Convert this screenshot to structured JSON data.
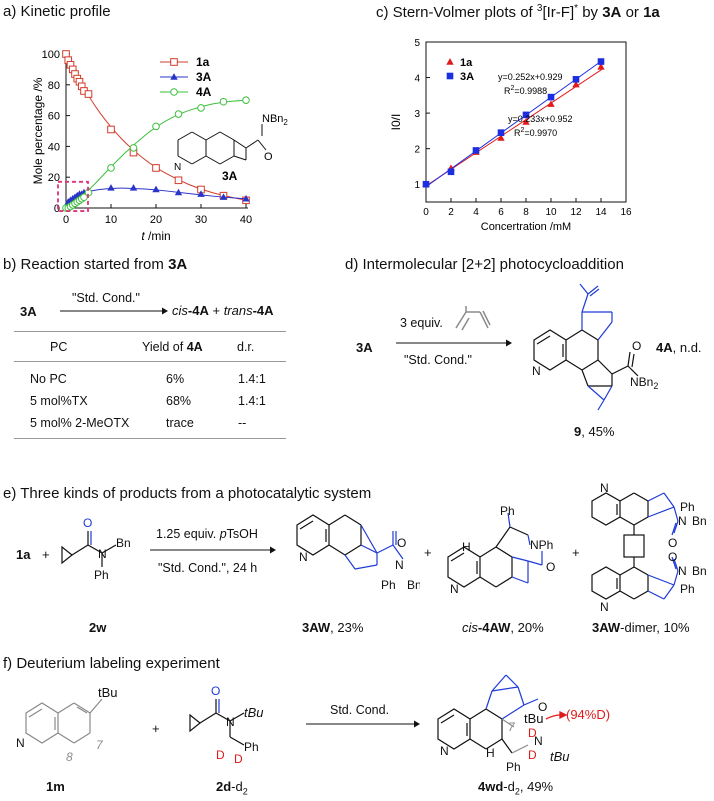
{
  "panels": {
    "a_title": "a) Kinetic profile",
    "b_title": "b) Reaction started from ",
    "b_title_bold": "3A",
    "c_title_pre": "c) Stern-Volmer plots of ",
    "c_title_sup": "3",
    "c_title_mid": "[Ir-F]",
    "c_title_star": "*",
    "c_title_by": " by ",
    "c_title_3a": "3A",
    "c_title_or": " or ",
    "c_title_1a": "1a",
    "d_title": "d) Intermolecular [2+2] photocycloaddition",
    "e_title": "e) Three kinds of products from a photocatalytic system",
    "f_title": "f) Deuterium labeling experiment"
  },
  "chart_data": [
    {
      "type": "line",
      "title": "Kinetic profile",
      "xlabel_italic": "t",
      "xlabel": " /min",
      "ylabel": "Mole percentage /%",
      "xlim": [
        0,
        40
      ],
      "ylim": [
        0,
        100
      ],
      "xticks": [
        "0",
        "10",
        "20",
        "30",
        "40"
      ],
      "yticks": [
        "0",
        "20",
        "40",
        "60",
        "80",
        "100"
      ],
      "legend": [
        "1a",
        "3A",
        "4A"
      ],
      "inset_label": "3A",
      "inset_sub": "NBn",
      "inset_sub2": "2",
      "inset_o": "O",
      "series": [
        {
          "name": "1a",
          "color": "#d23c2c",
          "marker": "square-open",
          "x": [
            0,
            0.5,
            1,
            1.5,
            2,
            2.5,
            3,
            3.5,
            4,
            5,
            10,
            15,
            20,
            25,
            30,
            35,
            40
          ],
          "y": [
            100,
            96,
            93,
            90,
            87,
            84,
            82,
            79,
            76,
            74,
            51,
            36,
            26,
            18,
            12,
            8,
            5
          ]
        },
        {
          "name": "3A",
          "color": "#2a35c8",
          "marker": "triangle",
          "x": [
            0,
            0.5,
            1,
            1.5,
            2,
            2.5,
            3,
            3.5,
            4,
            5,
            10,
            15,
            20,
            25,
            30,
            35,
            40
          ],
          "y": [
            0,
            4,
            5,
            6,
            7,
            8,
            9,
            9,
            10,
            11,
            13,
            13,
            12,
            10,
            9,
            7,
            6
          ]
        },
        {
          "name": "4A",
          "color": "#3cbf3c",
          "marker": "circle-open",
          "x": [
            0,
            0.5,
            1,
            1.5,
            2,
            2.5,
            3,
            3.5,
            4,
            5,
            10,
            15,
            20,
            25,
            30,
            35,
            40
          ],
          "y": [
            0,
            0,
            1,
            2,
            3,
            4,
            5,
            6,
            7,
            10,
            26,
            39,
            53,
            61,
            65,
            69,
            70
          ]
        }
      ],
      "fit_lines": {
        "1a": {
          "x": [
            0,
            5,
            10,
            15,
            20,
            25,
            30,
            35,
            40
          ],
          "y": [
            100,
            72,
            52,
            37,
            26,
            18,
            12,
            8,
            5
          ]
        },
        "3A": {
          "x": [
            0,
            2,
            5,
            10,
            15,
            20,
            25,
            30,
            35,
            40
          ],
          "y": [
            0,
            8,
            11,
            13,
            12.8,
            11.8,
            10.2,
            8.5,
            7,
            6
          ]
        },
        "4A": {
          "x": [
            0,
            5,
            10,
            15,
            20,
            25,
            30,
            35,
            40
          ],
          "y": [
            0,
            11,
            27,
            41,
            53,
            61,
            66,
            69,
            70
          ]
        }
      }
    },
    {
      "type": "scatter",
      "title": "Stern-Volmer plots",
      "xlabel": "Concertration /mM",
      "ylabel": "I0/I",
      "xlim": [
        0,
        16
      ],
      "ylim": [
        0.5,
        5
      ],
      "xticks": [
        "0",
        "2",
        "4",
        "6",
        "8",
        "10",
        "12",
        "14",
        "16"
      ],
      "yticks": [
        "1",
        "2",
        "3",
        "4",
        "5"
      ],
      "legend": [
        "1a",
        "3A"
      ],
      "annotations": [
        {
          "line1": "y=0.252x+0.929",
          "line2": "R",
          "line2_sup": "2",
          "line2_val": "=0.9988"
        },
        {
          "line1": "y=0.233x+0.952",
          "line2": "R",
          "line2_sup": "2",
          "line2_val": "=0.9970"
        }
      ],
      "series": [
        {
          "name": "1a",
          "color": "#e01b1b",
          "marker": "triangle",
          "slope": 0.233,
          "intercept": 0.952,
          "x": [
            0,
            2,
            4,
            6,
            8,
            10,
            12,
            14
          ],
          "y": [
            1.0,
            1.45,
            1.9,
            2.3,
            2.75,
            3.25,
            3.8,
            4.3
          ]
        },
        {
          "name": "3A",
          "color": "#1b2ee0",
          "marker": "square",
          "slope": 0.252,
          "intercept": 0.929,
          "x": [
            0,
            2,
            4,
            6,
            8,
            10,
            12,
            14
          ],
          "y": [
            1.0,
            1.35,
            1.95,
            2.45,
            2.95,
            3.45,
            3.95,
            4.45
          ]
        }
      ]
    }
  ],
  "b": {
    "reactant": "3A",
    "cond": "\"Std. Cond.\"",
    "prod_cis_it": "cis",
    "prod_cis": "-4A",
    "plus": "+",
    "prod_trans_it": "trans",
    "prod_trans": "-4A",
    "headers": [
      "PC",
      "Yield of ",
      "4A",
      "d.r."
    ],
    "rows": [
      {
        "pc": "No PC",
        "yield": "6%",
        "dr": "1.4:1"
      },
      {
        "pc": "5 mol%TX",
        "yield": "68%",
        "dr": "1.4:1"
      },
      {
        "pc": "5 mol% 2-MeOTX",
        "yield": "trace",
        "dr": "--"
      }
    ]
  },
  "d": {
    "reactant": "3A",
    "reagent": "3 equiv.",
    "cond": "\"Std. Cond.\"",
    "product_label": "9",
    "product_yield": ", 45%",
    "side": "4A",
    "side_note": ", n.d.",
    "nbn": "NBn",
    "nbn_sub": "2",
    "o": "O",
    "n": "N"
  },
  "e": {
    "r1": "1a",
    "plus": "+",
    "reagent": "1.25 equiv. ",
    "reagent_it": "p",
    "reagent_rest": "TsOH",
    "cond": "\"Std. Cond.\", 24 h",
    "r2_label": "2w",
    "p1_label": "3AW",
    "p1_yield": ", 23%",
    "p2_label_it": "cis",
    "p2_label": "-4AW",
    "p2_yield": ", 20%",
    "p3_label": "3AW",
    "p3_yield": "-dimer, 10%",
    "atoms": {
      "o": "O",
      "n": "N",
      "bn": "Bn",
      "ph": "Ph",
      "h": "H",
      "nph": "NPh"
    }
  },
  "f": {
    "r1_label": "1m",
    "tbu": "tBu",
    "pos7": "7",
    "pos8": "8",
    "plus": "+",
    "r2_label": "2d",
    "r2_sub": "-d",
    "r2_subsub": "2",
    "cond": "Std. Cond.",
    "p_label": "4wd",
    "p_sub": "-d",
    "p_subsub": "2",
    "p_yield": ", 49%",
    "deut": "(94%D)",
    "atoms": {
      "o": "O",
      "n": "N",
      "ph": "Ph",
      "h": "H",
      "d": "D"
    }
  },
  "colors": {
    "accent_red": "#e01b1b",
    "blue": "#1f3bd6",
    "grey": "#8a8a8a",
    "magenta": "#e0307a"
  }
}
